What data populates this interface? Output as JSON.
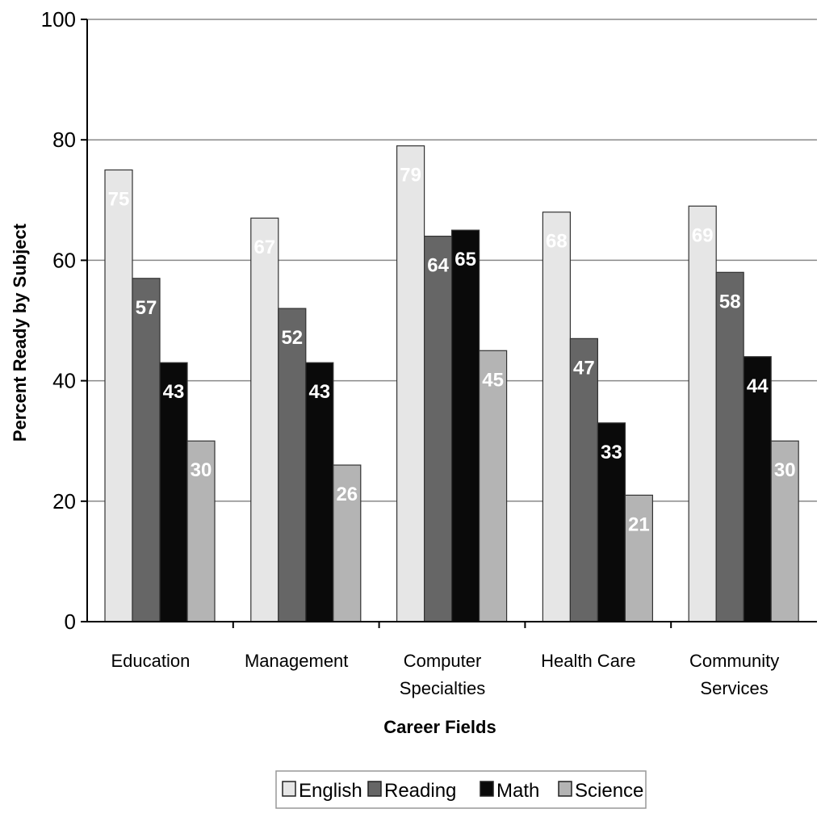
{
  "chart_data": {
    "type": "bar",
    "title": "",
    "xlabel": "Career Fields",
    "ylabel": "Percent Ready by Subject",
    "ylim": [
      0,
      100
    ],
    "yticks": [
      0,
      20,
      40,
      60,
      80,
      100
    ],
    "grid": true,
    "legend_position": "bottom",
    "categories": [
      [
        "Education"
      ],
      [
        "Management"
      ],
      [
        "Computer",
        "Specialties"
      ],
      [
        "Health Care"
      ],
      [
        "Community",
        "Services"
      ]
    ],
    "series": [
      {
        "name": "English",
        "color": "#e6e6e6",
        "values": [
          75,
          67,
          79,
          68,
          69
        ]
      },
      {
        "name": "Reading",
        "color": "#666666",
        "values": [
          57,
          52,
          64,
          47,
          58
        ]
      },
      {
        "name": "Math",
        "color": "#0a0a0a",
        "values": [
          43,
          43,
          65,
          33,
          44
        ]
      },
      {
        "name": "Science",
        "color": "#b4b4b4",
        "values": [
          30,
          26,
          45,
          21,
          30
        ]
      }
    ]
  }
}
